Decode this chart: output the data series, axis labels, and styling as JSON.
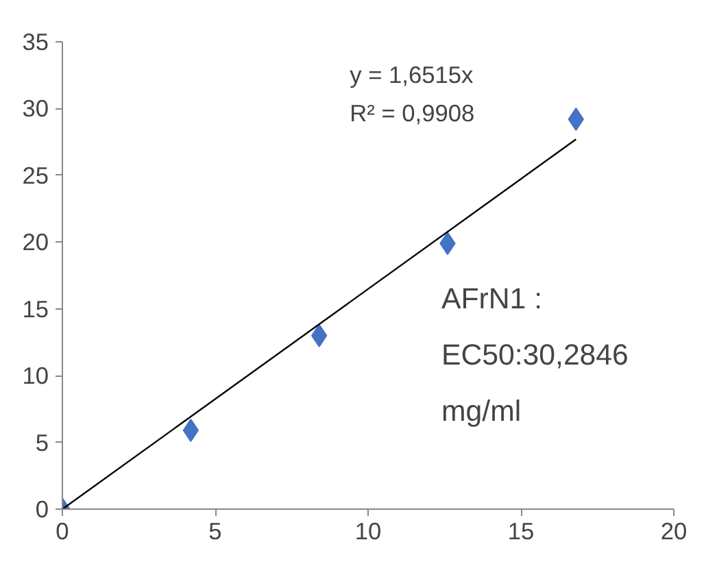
{
  "chart_data": {
    "type": "scatter",
    "grid": false,
    "xlim": [
      0,
      20
    ],
    "xticks": [
      0,
      5,
      10,
      15,
      20
    ],
    "ylim": [
      0,
      35
    ],
    "yticks": [
      0,
      5,
      10,
      15,
      20,
      25,
      30,
      35
    ],
    "series": [
      {
        "marker": "diamond",
        "color": "#4472c4",
        "x": [
          0,
          4.2,
          8.4,
          12.6,
          16.8
        ],
        "values": [
          0,
          5.9,
          13,
          19.9,
          29.2
        ]
      },
      {
        "type": "line",
        "marker": "none",
        "color": "#000000",
        "x": [
          0,
          16.8
        ],
        "values": [
          0,
          27.7
        ]
      }
    ],
    "annotations": [
      "y = 1,6515x\nR² = 0,9908",
      "AFrN1 :\nEC50:30,2846\nmg/ml"
    ]
  }
}
